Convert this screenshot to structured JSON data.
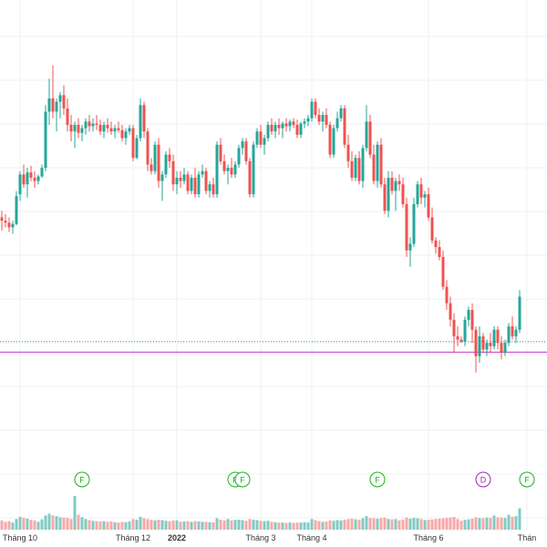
{
  "colors": {
    "up": "#26a69a",
    "down": "#ef5350",
    "up_volume": "#80cbc4",
    "down_volume": "#f7a9a7",
    "grid": "#eef0f3",
    "price_line": "#c12ad1",
    "dotted_line": "#26a69a",
    "event_F": "#19b219",
    "event_D": "#9c27b0"
  },
  "chart_data": {
    "type": "candlestick",
    "title": "",
    "x_axis": {
      "ticks": [
        {
          "label": "Tháng 10",
          "index": 5,
          "bold": false
        },
        {
          "label": "Tháng 12",
          "index": 36,
          "bold": false
        },
        {
          "label": "2022",
          "index": 48,
          "bold": true
        },
        {
          "label": "Tháng 3",
          "index": 71,
          "bold": false
        },
        {
          "label": "Tháng 4",
          "index": 85,
          "bold": false
        },
        {
          "label": "Tháng 6",
          "index": 117,
          "bold": false
        },
        {
          "label": "Thán",
          "index": 144,
          "bold": false
        }
      ]
    },
    "y_range": [
      26.5,
      81
    ],
    "volume_range": [
      0,
      100
    ],
    "horizontal_lines": [
      {
        "kind": "dotted",
        "value": 36.2
      },
      {
        "kind": "solid",
        "value": 34.6
      }
    ],
    "events": [
      {
        "label": "F",
        "index": 20
      },
      {
        "label": "F",
        "index": 62
      },
      {
        "label": "F",
        "index": 64
      },
      {
        "label": "F",
        "index": 101
      },
      {
        "label": "D",
        "index": 130
      },
      {
        "label": "F",
        "index": 142
      }
    ],
    "candles": [
      [
        55.0,
        56.0,
        53.0,
        54.5,
        26
      ],
      [
        54.5,
        55.5,
        53.5,
        54.2,
        22
      ],
      [
        54.2,
        55.0,
        52.8,
        53.5,
        24
      ],
      [
        53.5,
        54.5,
        52.5,
        54.0,
        20
      ],
      [
        54.0,
        59.0,
        53.8,
        58.2,
        30
      ],
      [
        58.5,
        62.0,
        57.5,
        61.5,
        36
      ],
      [
        61.5,
        63.0,
        59.5,
        60.0,
        33
      ],
      [
        60.0,
        62.5,
        58.0,
        61.8,
        31
      ],
      [
        61.8,
        62.8,
        60.5,
        61.0,
        28
      ],
      [
        61.0,
        62.0,
        59.5,
        60.5,
        26
      ],
      [
        60.5,
        61.5,
        60.0,
        61.2,
        22
      ],
      [
        61.2,
        63.0,
        61.0,
        62.5,
        29
      ],
      [
        62.5,
        72.0,
        62.0,
        71.0,
        40
      ],
      [
        71.0,
        76.0,
        69.0,
        73.0,
        45
      ],
      [
        73.0,
        78.0,
        70.0,
        71.0,
        40
      ],
      [
        71.0,
        73.0,
        68.0,
        72.5,
        38
      ],
      [
        72.5,
        74.0,
        70.0,
        73.5,
        35
      ],
      [
        73.5,
        75.0,
        70.5,
        71.5,
        34
      ],
      [
        71.5,
        73.0,
        68.0,
        69.0,
        33
      ],
      [
        69.0,
        70.5,
        66.5,
        68.0,
        30
      ],
      [
        68.0,
        69.5,
        65.5,
        69.0,
        95
      ],
      [
        69.0,
        70.0,
        67.0,
        67.8,
        42
      ],
      [
        67.8,
        69.0,
        66.5,
        68.5,
        35
      ],
      [
        68.5,
        70.0,
        67.5,
        69.5,
        30
      ],
      [
        69.5,
        70.5,
        68.0,
        68.8,
        27
      ],
      [
        68.8,
        70.0,
        68.0,
        69.2,
        25
      ],
      [
        69.2,
        70.5,
        68.2,
        69.0,
        24
      ],
      [
        69.0,
        69.8,
        67.5,
        68.0,
        23
      ],
      [
        68.0,
        69.5,
        67.0,
        69.0,
        24
      ],
      [
        69.0,
        70.0,
        67.8,
        68.5,
        22
      ],
      [
        68.5,
        69.5,
        67.5,
        68.0,
        23
      ],
      [
        68.0,
        69.0,
        67.0,
        68.5,
        21
      ],
      [
        68.5,
        69.5,
        67.8,
        68.2,
        20
      ],
      [
        68.2,
        69.0,
        66.5,
        67.0,
        22
      ],
      [
        67.0,
        68.5,
        66.0,
        68.0,
        21
      ],
      [
        68.0,
        69.0,
        67.5,
        68.5,
        23
      ],
      [
        68.5,
        69.0,
        63.5,
        64.0,
        30
      ],
      [
        64.0,
        67.5,
        63.8,
        67.0,
        28
      ],
      [
        67.0,
        73.0,
        66.5,
        72.0,
        36
      ],
      [
        72.0,
        72.5,
        67.0,
        68.0,
        32
      ],
      [
        68.0,
        68.5,
        62.0,
        63.0,
        30
      ],
      [
        63.0,
        64.0,
        61.5,
        62.0,
        28
      ],
      [
        62.0,
        66.5,
        61.5,
        66.0,
        26
      ],
      [
        66.0,
        67.0,
        59.5,
        60.5,
        28
      ],
      [
        60.5,
        62.0,
        57.5,
        61.5,
        27
      ],
      [
        61.5,
        65.0,
        61.0,
        64.5,
        25
      ],
      [
        64.5,
        65.5,
        62.5,
        63.5,
        24
      ],
      [
        63.5,
        64.5,
        59.0,
        60.0,
        26
      ],
      [
        60.0,
        62.0,
        58.5,
        61.0,
        26
      ],
      [
        61.0,
        62.0,
        59.5,
        60.5,
        22
      ],
      [
        60.5,
        62.5,
        60.0,
        61.5,
        23
      ],
      [
        61.5,
        62.0,
        58.5,
        59.0,
        24
      ],
      [
        59.0,
        61.5,
        58.5,
        61.0,
        22
      ],
      [
        61.0,
        62.5,
        58.0,
        58.5,
        24
      ],
      [
        58.5,
        62.0,
        58.0,
        61.5,
        23
      ],
      [
        61.5,
        63.0,
        61.0,
        62.0,
        22
      ],
      [
        62.0,
        62.5,
        58.5,
        59.0,
        22
      ],
      [
        59.0,
        60.5,
        58.0,
        60.0,
        21
      ],
      [
        60.0,
        61.0,
        58.0,
        58.5,
        21
      ],
      [
        58.5,
        66.5,
        58.0,
        66.0,
        32
      ],
      [
        66.0,
        67.0,
        63.0,
        63.5,
        28
      ],
      [
        63.5,
        64.5,
        61.5,
        62.0,
        26
      ],
      [
        62.0,
        63.0,
        60.0,
        62.5,
        30
      ],
      [
        62.5,
        64.0,
        61.0,
        61.5,
        26
      ],
      [
        61.5,
        63.5,
        61.0,
        63.0,
        28
      ],
      [
        63.0,
        66.0,
        62.5,
        65.5,
        28
      ],
      [
        65.5,
        67.0,
        64.5,
        66.5,
        27
      ],
      [
        66.5,
        67.0,
        63.0,
        63.5,
        25
      ],
      [
        63.5,
        64.0,
        58.0,
        58.5,
        30
      ],
      [
        58.5,
        66.5,
        58.0,
        66.0,
        28
      ],
      [
        66.0,
        68.5,
        65.5,
        68.0,
        27
      ],
      [
        68.0,
        69.0,
        65.5,
        66.0,
        25
      ],
      [
        66.0,
        67.5,
        64.5,
        67.0,
        24
      ],
      [
        67.0,
        69.5,
        66.5,
        69.0,
        25
      ],
      [
        69.0,
        70.0,
        67.5,
        68.0,
        22
      ],
      [
        68.0,
        69.5,
        67.0,
        69.0,
        21
      ],
      [
        69.0,
        70.0,
        67.5,
        68.5,
        20
      ],
      [
        68.5,
        69.5,
        67.0,
        69.2,
        20
      ],
      [
        69.2,
        70.0,
        68.0,
        68.8,
        19
      ],
      [
        68.8,
        69.8,
        68.0,
        69.5,
        20
      ],
      [
        69.5,
        70.0,
        68.5,
        69.0,
        19
      ],
      [
        69.0,
        69.8,
        67.0,
        67.5,
        20
      ],
      [
        67.5,
        69.5,
        67.0,
        69.2,
        20
      ],
      [
        69.2,
        70.0,
        68.5,
        69.5,
        21
      ],
      [
        69.5,
        70.5,
        68.8,
        70.0,
        20
      ],
      [
        70.0,
        73.0,
        69.5,
        72.5,
        30
      ],
      [
        72.5,
        73.0,
        70.0,
        70.5,
        27
      ],
      [
        70.5,
        71.5,
        69.0,
        69.5,
        24
      ],
      [
        69.5,
        71.0,
        68.0,
        70.5,
        22
      ],
      [
        70.5,
        71.5,
        68.5,
        69.0,
        23
      ],
      [
        69.0,
        69.5,
        64.0,
        64.5,
        26
      ],
      [
        64.5,
        69.0,
        64.0,
        68.5,
        25
      ],
      [
        68.5,
        71.0,
        68.0,
        70.0,
        27
      ],
      [
        70.0,
        72.0,
        69.5,
        71.5,
        26
      ],
      [
        71.5,
        72.0,
        65.5,
        66.0,
        28
      ],
      [
        66.0,
        67.5,
        62.5,
        63.5,
        30
      ],
      [
        63.5,
        65.0,
        60.5,
        61.0,
        31
      ],
      [
        61.0,
        64.5,
        60.5,
        64.0,
        29
      ],
      [
        64.0,
        65.0,
        60.0,
        60.5,
        28
      ],
      [
        60.5,
        66.0,
        59.5,
        65.5,
        32
      ],
      [
        65.5,
        72.0,
        65.0,
        69.5,
        38
      ],
      [
        69.5,
        70.5,
        64.0,
        64.5,
        33
      ],
      [
        64.5,
        66.0,
        60.0,
        60.5,
        32
      ],
      [
        60.5,
        66.5,
        59.5,
        66.0,
        31
      ],
      [
        66.0,
        67.0,
        59.5,
        60.0,
        33
      ],
      [
        60.0,
        61.0,
        55.5,
        56.0,
        34
      ],
      [
        56.0,
        62.0,
        55.0,
        61.0,
        30
      ],
      [
        61.0,
        62.0,
        58.5,
        59.0,
        29
      ],
      [
        59.0,
        61.0,
        56.0,
        60.5,
        30
      ],
      [
        60.5,
        61.5,
        59.0,
        60.0,
        26
      ],
      [
        60.0,
        61.0,
        56.5,
        57.0,
        28
      ],
      [
        57.0,
        58.0,
        49.0,
        50.0,
        34
      ],
      [
        50.0,
        52.0,
        47.5,
        51.0,
        31
      ],
      [
        51.0,
        58.0,
        50.5,
        57.0,
        33
      ],
      [
        57.0,
        60.5,
        56.5,
        60.0,
        32
      ],
      [
        60.0,
        61.0,
        57.0,
        58.0,
        30
      ],
      [
        58.0,
        59.0,
        56.5,
        58.5,
        27
      ],
      [
        58.5,
        59.5,
        54.5,
        55.0,
        28
      ],
      [
        55.0,
        56.5,
        51.0,
        51.5,
        29
      ],
      [
        51.5,
        52.0,
        49.5,
        50.5,
        30
      ],
      [
        50.5,
        51.5,
        48.5,
        49.0,
        31
      ],
      [
        49.0,
        50.0,
        44.0,
        44.5,
        32
      ],
      [
        44.5,
        45.5,
        41.0,
        42.0,
        33
      ],
      [
        42.0,
        43.0,
        38.5,
        39.5,
        34
      ],
      [
        39.5,
        40.5,
        34.5,
        37.0,
        36
      ],
      [
        37.0,
        38.5,
        35.5,
        36.5,
        30
      ],
      [
        36.5,
        37.0,
        36.0,
        36.2,
        25
      ],
      [
        36.2,
        40.0,
        35.5,
        39.5,
        28
      ],
      [
        39.5,
        41.5,
        38.5,
        41.0,
        29
      ],
      [
        41.0,
        42.0,
        36.0,
        38.0,
        31
      ],
      [
        38.0,
        38.5,
        31.5,
        34.0,
        35
      ],
      [
        34.0,
        38.5,
        33.0,
        37.0,
        33
      ],
      [
        37.0,
        37.5,
        34.5,
        35.0,
        32
      ],
      [
        35.0,
        36.5,
        34.0,
        36.0,
        34
      ],
      [
        36.0,
        37.5,
        34.5,
        35.5,
        33
      ],
      [
        35.5,
        38.5,
        35.0,
        38.0,
        40
      ],
      [
        38.0,
        38.5,
        35.0,
        36.0,
        35
      ],
      [
        36.0,
        37.0,
        33.5,
        34.5,
        34
      ],
      [
        34.5,
        36.5,
        34.0,
        36.0,
        33
      ],
      [
        36.0,
        39.0,
        35.5,
        38.5,
        42
      ],
      [
        38.5,
        40.0,
        36.5,
        37.0,
        36
      ],
      [
        37.0,
        38.5,
        36.0,
        38.0,
        38
      ],
      [
        38.0,
        44.0,
        37.5,
        43.0,
        60
      ]
    ]
  }
}
